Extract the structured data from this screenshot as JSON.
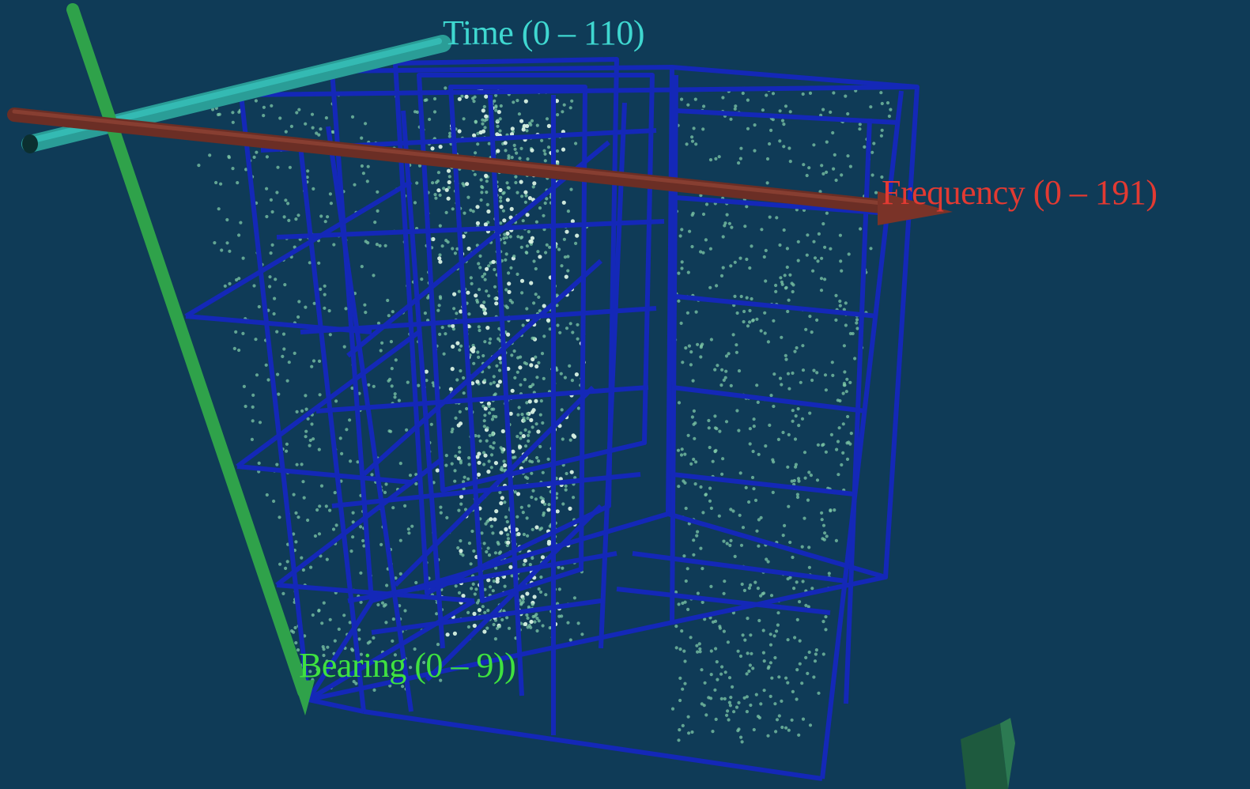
{
  "scene": {
    "background": "#0f3b57",
    "grid_color": "#1428b8",
    "point_color": "#7fc9a7",
    "point_highlight_color": "#d8f1e3"
  },
  "axes": {
    "time": {
      "label": "Time (0 – 110)",
      "color": "#3fd7d0",
      "range": [
        0,
        110
      ]
    },
    "frequency": {
      "label": "Frequency (0 – 191)",
      "color": "#e23a32",
      "range": [
        0,
        191
      ]
    },
    "bearing": {
      "label": "Bearing (0 – 9))",
      "color": "#3fe23f",
      "range": [
        0,
        9
      ]
    }
  }
}
